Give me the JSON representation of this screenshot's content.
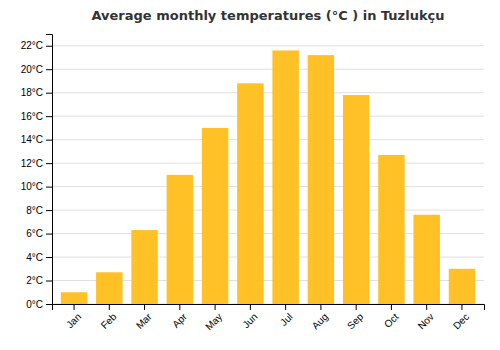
{
  "chart_data": {
    "type": "bar",
    "title": "Average monthly temperatures (°C ) in Tuzlukçu",
    "categories": [
      "Jan",
      "Feb",
      "Mar",
      "Apr",
      "May",
      "Jun",
      "Jul",
      "Aug",
      "Sep",
      "Oct",
      "Nov",
      "Dec"
    ],
    "values": [
      1.0,
      2.7,
      6.3,
      11.0,
      15.0,
      18.8,
      21.6,
      21.2,
      17.8,
      12.7,
      7.6,
      3.0
    ],
    "color": "#FFC125",
    "ylim": [
      0,
      23
    ],
    "yticks": [
      {
        "value": 0,
        "label": "0°C"
      },
      {
        "value": 2,
        "label": "2°C"
      },
      {
        "value": 4,
        "label": "4°C"
      },
      {
        "value": 6,
        "label": "6°C"
      },
      {
        "value": 8,
        "label": "8°C"
      },
      {
        "value": 10,
        "label": "10°C"
      },
      {
        "value": 12,
        "label": "12°C"
      },
      {
        "value": 14,
        "label": "14°C"
      },
      {
        "value": 16,
        "label": "16°C"
      },
      {
        "value": 18,
        "label": "18°C"
      },
      {
        "value": 20,
        "label": "20°C"
      },
      {
        "value": 22,
        "label": "22°C"
      }
    ],
    "grid": true
  }
}
